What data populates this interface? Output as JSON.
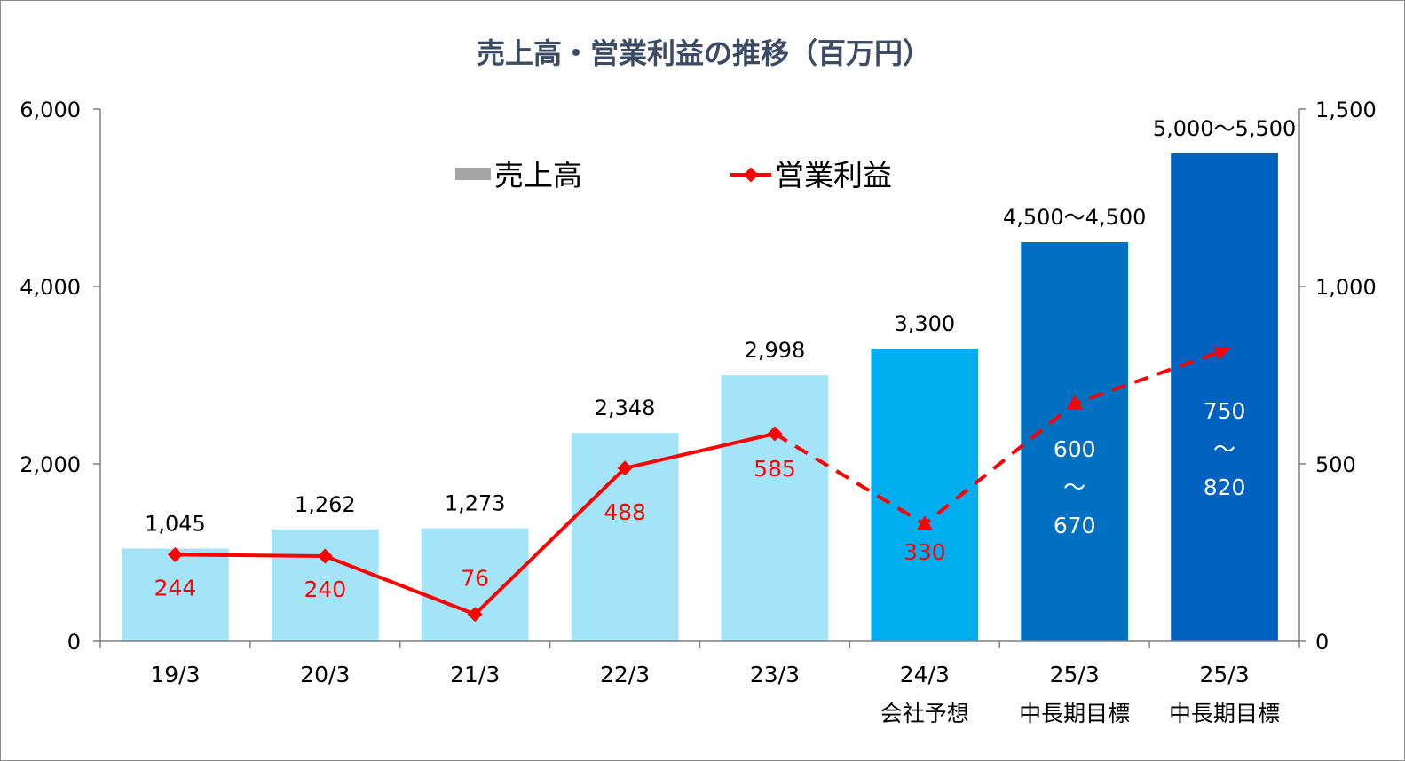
{
  "chart_data": {
    "type": "bar",
    "title": "売上高・営業利益の推移（百万円）",
    "categories": [
      [
        "19/3"
      ],
      [
        "20/3"
      ],
      [
        "21/3"
      ],
      [
        "22/3"
      ],
      [
        "23/3"
      ],
      [
        "24/3",
        "会社予想"
      ],
      [
        "25/3",
        "中長期目標"
      ],
      [
        "25/3",
        "中長期目標"
      ]
    ],
    "y_left": {
      "min": 0,
      "max": 6000,
      "ticks": [
        "0",
        "2,000",
        "4,000",
        "6,000"
      ]
    },
    "y_right": {
      "min": 0,
      "max": 1500,
      "ticks": [
        "0",
        "500",
        "1,000",
        "1,500"
      ]
    },
    "legend": {
      "placement": "top-center",
      "items": [
        "売上高",
        "営業利益"
      ]
    },
    "series": [
      {
        "name": "売上高",
        "kind": "bar",
        "axis": "left",
        "values": [
          1045,
          1262,
          1273,
          2348,
          2998,
          3300,
          4500,
          5500
        ],
        "labels": [
          "1,045",
          "1,262",
          "1,273",
          "2,348",
          "2,998",
          "3,300",
          "4,500〜4,500",
          "5,000〜5,500"
        ],
        "colors": [
          "#a3e4f9",
          "#a3e4f9",
          "#a3e4f9",
          "#a3e4f9",
          "#a3e4f9",
          "#00aeef",
          "#0070c0",
          "#0062be"
        ]
      },
      {
        "name": "営業利益",
        "kind": "line",
        "axis": "right",
        "values": [
          244,
          240,
          76,
          488,
          585,
          330,
          670,
          820
        ],
        "labels": [
          [
            "244"
          ],
          [
            "240"
          ],
          [
            "76"
          ],
          [
            "488"
          ],
          [
            "585"
          ],
          [
            "330"
          ],
          [
            "600",
            "〜",
            "670"
          ],
          [
            "750",
            "〜",
            "820"
          ]
        ],
        "label_colors": [
          "#ff0000",
          "#ff0000",
          "#ff0000",
          "#ff0000",
          "#ff0000",
          "#ff0000",
          "#ffffff",
          "#ffffff"
        ],
        "solid_through_index": 4,
        "color": "#ff0000"
      }
    ],
    "legend_bar_color": "#a6a6a6",
    "axis_color": "#7f7f7f"
  }
}
